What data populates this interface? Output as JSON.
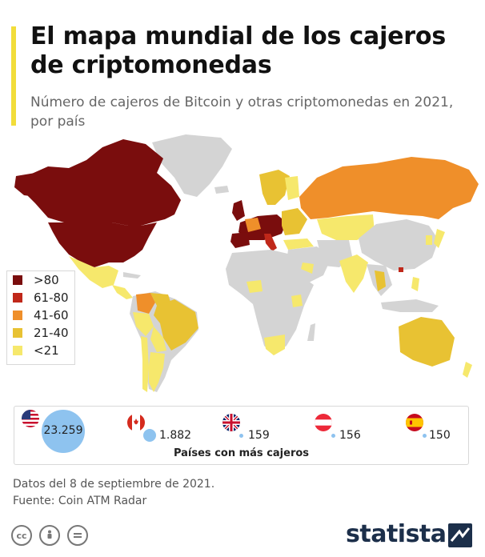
{
  "header": {
    "title": "El mapa mundial de los cajeros de criptomonedas",
    "subtitle": "Número de cajeros de Bitcoin y otras criptomonedas en 2021, por país"
  },
  "legend": {
    "items": [
      {
        "label": ">80",
        "color": "#7a0d0d"
      },
      {
        "label": "61-80",
        "color": "#c0281a"
      },
      {
        "label": "41-60",
        "color": "#ef8f2a"
      },
      {
        "label": "21-40",
        "color": "#e8c233"
      },
      {
        "label": "<21",
        "color": "#f6e86c"
      }
    ],
    "no_data_color": "#d4d4d4"
  },
  "map": {
    "regions": [
      {
        "name": "Estados Unidos / Canadá",
        "category": ">80"
      },
      {
        "name": "Rusia",
        "category": "41-60"
      },
      {
        "name": "Europa Occidental",
        "category": ">80"
      },
      {
        "name": "México",
        "category": "<21"
      },
      {
        "name": "Colombia",
        "category": "41-60"
      },
      {
        "name": "Brasil",
        "category": "21-40"
      },
      {
        "name": "Argentina",
        "category": "<21"
      },
      {
        "name": "Sudáfrica",
        "category": "<21"
      },
      {
        "name": "India",
        "category": "<21"
      },
      {
        "name": "Tailandia",
        "category": "21-40"
      },
      {
        "name": "Hong Kong",
        "category": "61-80"
      },
      {
        "name": "Australia",
        "category": "21-40"
      },
      {
        "name": "Japón",
        "category": "<21"
      },
      {
        "name": "Kazajistán",
        "category": "<21"
      }
    ]
  },
  "top_countries": {
    "caption": "Países con más cajeros",
    "items": [
      {
        "country": "Estados Unidos",
        "value": 23259,
        "label": "23.259",
        "flag": "us-flag"
      },
      {
        "country": "Canadá",
        "value": 1882,
        "label": "1.882",
        "flag": "ca-flag"
      },
      {
        "country": "Reino Unido",
        "value": 159,
        "label": "159",
        "flag": "uk-flag"
      },
      {
        "country": "Austria",
        "value": 156,
        "label": "156",
        "flag": "at-flag"
      },
      {
        "country": "España",
        "value": 150,
        "label": "150",
        "flag": "es-flag"
      }
    ],
    "bubble_color": "#8ec3ef"
  },
  "footer": {
    "date_note": "Datos del 8 de septiembre de 2021.",
    "source": "Fuente: Coin ATM Radar",
    "license_icons": [
      "cc-icon",
      "by-icon",
      "equals-icon"
    ],
    "brand": "statista"
  }
}
